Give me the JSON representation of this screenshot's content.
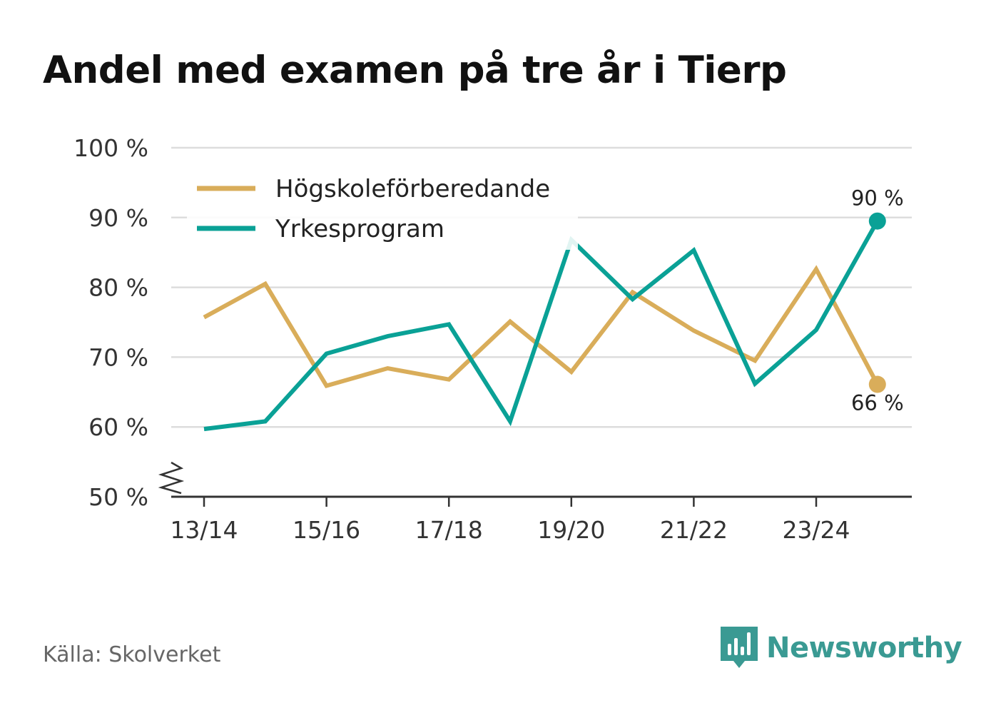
{
  "title": "Andel med examen på tre år i Tierp",
  "source": "Källa: Skolverket",
  "brand": {
    "name": "Newsworthy",
    "icon": "bar-chart-speech-bubble-icon",
    "color": "#3a9a93"
  },
  "chart_data": {
    "type": "line",
    "title": "Andel med examen på tre år i Tierp",
    "xlabel": "",
    "ylabel": "",
    "x": [
      "13/14",
      "14/15",
      "15/16",
      "16/17",
      "17/18",
      "18/19",
      "19/20",
      "20/21",
      "21/22",
      "22/23",
      "23/24",
      "24/25"
    ],
    "xtick_labels": [
      "13/14",
      "15/16",
      "17/18",
      "19/20",
      "21/22",
      "23/24"
    ],
    "ytick_labels": [
      "50 %",
      "60 %",
      "70 %",
      "80 %",
      "90 %",
      "100 %"
    ],
    "ylim": [
      50,
      100
    ],
    "yticks": [
      50,
      60,
      70,
      80,
      90,
      100
    ],
    "axis_break": true,
    "grid": true,
    "legend_position": "top-left",
    "series": [
      {
        "name": "Högskoleförberedande",
        "color": "#d9ad5a",
        "values": [
          75.7,
          80.5,
          65.9,
          68.4,
          66.8,
          75.1,
          67.9,
          79.3,
          73.8,
          69.5,
          82.6,
          66.1
        ],
        "end_label": "66 %"
      },
      {
        "name": "Yrkesprogram",
        "color": "#0aa196",
        "values": [
          59.7,
          60.8,
          70.5,
          73.0,
          74.7,
          60.8,
          86.8,
          78.3,
          85.3,
          66.2,
          73.9,
          89.5
        ],
        "end_label": "90 %"
      }
    ]
  }
}
